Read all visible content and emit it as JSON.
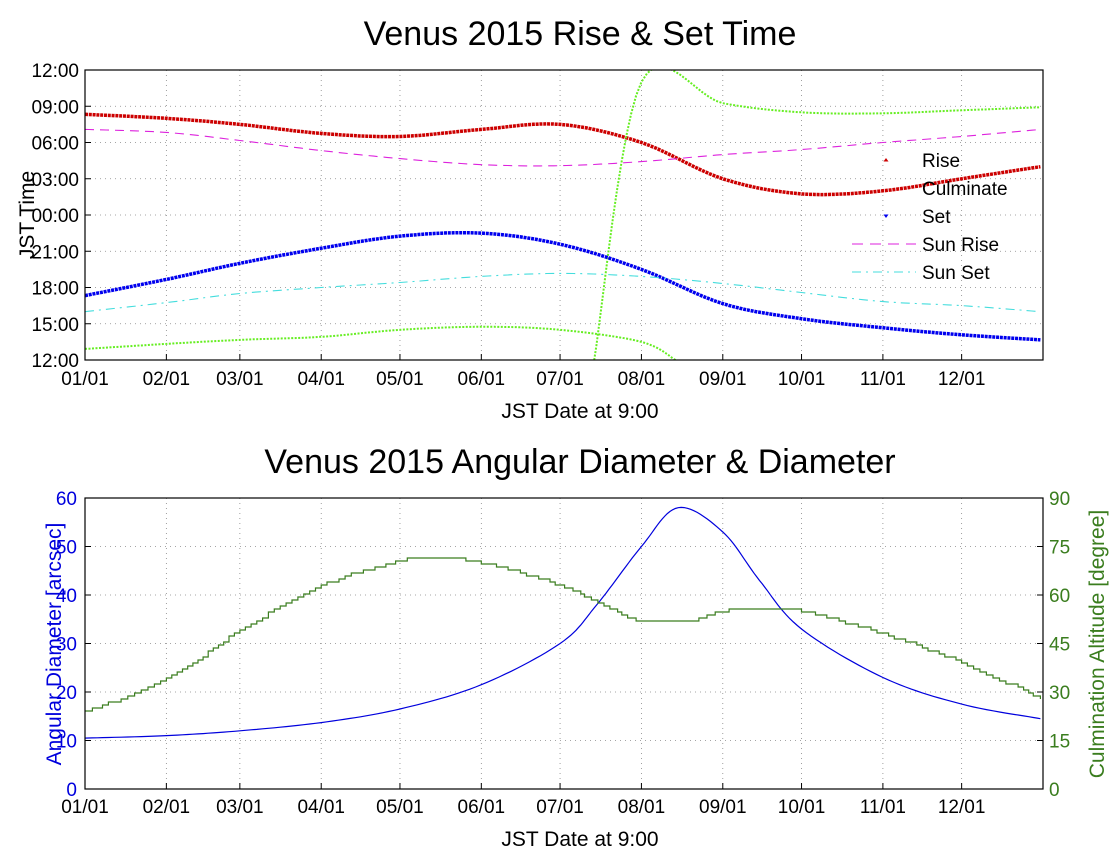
{
  "chart_data": [
    {
      "type": "line",
      "title": "Venus 2015 Rise & Set Time",
      "xlabel": "JST Date at 9:00",
      "ylabel": "JST Time",
      "x_ticks": [
        "01/01",
        "02/01",
        "03/01",
        "04/01",
        "05/01",
        "06/01",
        "07/01",
        "08/01",
        "09/01",
        "10/01",
        "11/01",
        "12/01"
      ],
      "y_ticks": [
        "12:00",
        "15:00",
        "18:00",
        "21:00",
        "00:00",
        "03:00",
        "06:00",
        "09:00",
        "12:00"
      ],
      "grid": true,
      "legend_position": "right",
      "y_axis_note": "time of day from 12:00 (bottom) through midnight to 12:00 (top), in hours",
      "colors": {
        "rise": "#cc0000",
        "culminate": "#66ee22",
        "set": "#0000ee",
        "sun_rise": "#dd22dd",
        "sun_set": "#44dddd"
      },
      "series": [
        {
          "name": "Rise",
          "style": "points",
          "x": [
            "01/01",
            "02/01",
            "03/01",
            "04/01",
            "05/01",
            "06/01",
            "07/01",
            "08/01",
            "09/01",
            "10/01",
            "11/01",
            "12/01",
            "12/31"
          ],
          "y": [
            "08:20",
            "08:00",
            "07:30",
            "06:45",
            "06:30",
            "07:05",
            "07:30",
            "06:00",
            "03:00",
            "01:45",
            "02:00",
            "03:00",
            "04:00"
          ]
        },
        {
          "name": "Culminate",
          "style": "points",
          "segments": [
            {
              "x": [
                "01/01",
                "02/01",
                "03/01",
                "04/01",
                "05/01",
                "06/01",
                "07/01",
                "08/01",
                "08/14"
              ],
              "y": [
                "12:55",
                "13:20",
                "13:40",
                "13:55",
                "14:30",
                "14:45",
                "14:30",
                "13:30",
                "12:00"
              ]
            },
            {
              "x": [
                "07/14",
                "08/01",
                "09/01",
                "10/01",
                "11/01",
                "12/01",
                "12/31"
              ],
              "y": [
                "12:00",
                "11:00",
                "09:15",
                "08:30",
                "08:25",
                "08:40",
                "08:55"
              ]
            }
          ]
        },
        {
          "name": "Set",
          "style": "points",
          "x": [
            "01/01",
            "02/01",
            "03/01",
            "04/01",
            "05/01",
            "06/01",
            "07/01",
            "08/01",
            "09/01",
            "10/01",
            "11/01",
            "12/01",
            "12/31"
          ],
          "y": [
            "17:20",
            "18:40",
            "20:00",
            "21:15",
            "22:15",
            "22:30",
            "21:35",
            "19:30",
            "16:40",
            "15:25",
            "14:40",
            "14:05",
            "13:40"
          ]
        },
        {
          "name": "Sun Rise",
          "style": "dashed",
          "x": [
            "01/01",
            "02/01",
            "03/01",
            "04/01",
            "05/01",
            "06/01",
            "07/01",
            "08/01",
            "09/01",
            "10/01",
            "11/01",
            "12/01",
            "12/31"
          ],
          "y": [
            "07:05",
            "06:50",
            "06:10",
            "05:20",
            "04:40",
            "04:10",
            "04:05",
            "04:25",
            "05:00",
            "05:25",
            "06:00",
            "06:30",
            "07:05"
          ]
        },
        {
          "name": "Sun Set",
          "style": "dash-dot",
          "x": [
            "01/01",
            "02/01",
            "03/01",
            "04/01",
            "05/01",
            "06/01",
            "07/01",
            "08/01",
            "09/01",
            "10/01",
            "11/01",
            "12/01",
            "12/31"
          ],
          "y": [
            "16:00",
            "16:45",
            "17:30",
            "18:00",
            "18:25",
            "18:55",
            "19:10",
            "18:55",
            "18:20",
            "17:35",
            "16:50",
            "16:30",
            "16:00"
          ]
        }
      ]
    },
    {
      "type": "line",
      "title": "Venus 2015 Angular Diameter & Diameter",
      "xlabel": "JST Date at 9:00",
      "ylabel": "Angular Diameter [arcsec]",
      "ylabel_right": "Culmination Altitude [degree]",
      "x_ticks": [
        "01/01",
        "02/01",
        "03/01",
        "04/01",
        "05/01",
        "06/01",
        "07/01",
        "08/01",
        "09/01",
        "10/01",
        "11/01",
        "12/01"
      ],
      "ylim": [
        0,
        60
      ],
      "ylim_right": [
        0,
        90
      ],
      "y_ticks": [
        "0",
        "10",
        "20",
        "30",
        "40",
        "50",
        "60"
      ],
      "y_ticks_right": [
        "0",
        "15",
        "30",
        "45",
        "60",
        "75",
        "90"
      ],
      "grid": true,
      "colors": {
        "angular_diameter": "#0000dd",
        "culmination_altitude": "#3a7d1e",
        "left_axis": "#0000dd",
        "right_axis": "#3a7d1e"
      },
      "series": [
        {
          "name": "Angular Diameter",
          "axis": "left",
          "x": [
            "01/01",
            "02/01",
            "03/01",
            "04/01",
            "05/01",
            "06/01",
            "07/01",
            "07/15",
            "08/01",
            "08/15",
            "09/01",
            "09/15",
            "10/01",
            "11/01",
            "12/01",
            "12/31"
          ],
          "y": [
            10.5,
            11,
            12,
            13.7,
            16.5,
            21.5,
            30,
            38,
            50,
            58,
            53,
            43,
            33,
            23,
            17.5,
            14.5
          ]
        },
        {
          "name": "Culmination Altitude",
          "axis": "right",
          "x": [
            "01/01",
            "02/01",
            "03/01",
            "04/01",
            "05/01",
            "05/15",
            "06/01",
            "07/01",
            "07/20",
            "08/01",
            "08/20",
            "09/01",
            "09/20",
            "10/01",
            "11/01",
            "12/01",
            "12/31"
          ],
          "y": [
            24,
            34,
            49,
            63,
            70.5,
            71.5,
            70,
            63,
            56,
            52,
            52,
            55,
            56,
            55,
            48,
            39,
            28
          ]
        }
      ]
    }
  ]
}
